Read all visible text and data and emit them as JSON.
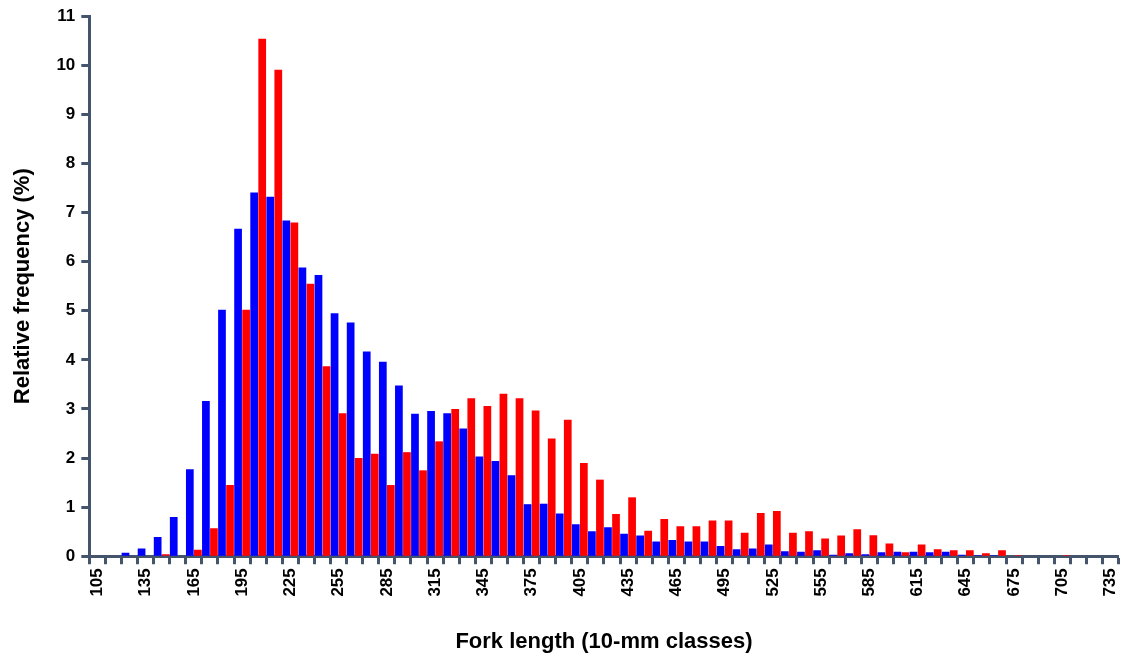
{
  "chart_data": {
    "type": "bar",
    "xlabel": "Fork length (10-mm classes)",
    "ylabel": "Relative frequency (%)",
    "categories": [
      "105",
      null,
      null,
      "135",
      null,
      null,
      "165",
      null,
      null,
      "195",
      null,
      null,
      "225",
      null,
      null,
      "255",
      null,
      null,
      "285",
      null,
      null,
      "315",
      null,
      null,
      "345",
      null,
      null,
      "375",
      null,
      null,
      "405",
      null,
      null,
      "435",
      null,
      null,
      "465",
      null,
      null,
      "495",
      null,
      null,
      "525",
      null,
      null,
      "555",
      null,
      null,
      "585",
      null,
      null,
      "615",
      null,
      null,
      "645",
      null,
      null,
      "675",
      null,
      null,
      "705",
      null,
      null,
      "735"
    ],
    "series": [
      {
        "color": "#0000ff",
        "values": [
          0,
          0,
          0.07,
          0.16,
          0.39,
          0.8,
          1.77,
          3.16,
          5.02,
          6.67,
          7.41,
          7.32,
          6.84,
          5.88,
          5.73,
          4.95,
          4.76,
          4.17,
          3.96,
          3.48,
          2.9,
          2.96,
          2.91,
          2.6,
          2.03,
          1.94,
          1.65,
          1.06,
          1.07,
          0.87,
          0.65,
          0.51,
          0.59,
          0.46,
          0.42,
          0.3,
          0.33,
          0.3,
          0.3,
          0.21,
          0.14,
          0.16,
          0.24,
          0.1,
          0.09,
          0.12,
          0.03,
          0.06,
          0.04,
          0.08,
          0.09,
          0.09,
          0.08,
          0.09,
          0.03,
          0.02,
          0.02,
          0,
          0,
          0,
          0,
          0,
          0,
          0
        ]
      },
      {
        "color": "#ff0000",
        "values": [
          0,
          0,
          0,
          0,
          0.04,
          0,
          0.13,
          0.57,
          1.45,
          5.02,
          10.54,
          9.91,
          6.8,
          5.55,
          3.87,
          2.91,
          2,
          2.09,
          1.45,
          2.12,
          1.75,
          2.34,
          3,
          3.22,
          3.06,
          3.31,
          3.22,
          2.97,
          2.4,
          2.78,
          1.9,
          1.56,
          0.86,
          1.2,
          0.52,
          0.76,
          0.61,
          0.61,
          0.73,
          0.73,
          0.48,
          0.88,
          0.92,
          0.48,
          0.51,
          0.36,
          0.42,
          0.55,
          0.43,
          0.26,
          0.08,
          0.24,
          0.14,
          0.12,
          0.12,
          0.06,
          0.12,
          0.02,
          0,
          0,
          0.02,
          0,
          0,
          0
        ]
      }
    ],
    "ylim": [
      0,
      11
    ],
    "yticks": [
      0,
      1,
      2,
      3,
      4,
      5,
      6,
      7,
      8,
      9,
      10,
      11
    ],
    "grid": false
  }
}
